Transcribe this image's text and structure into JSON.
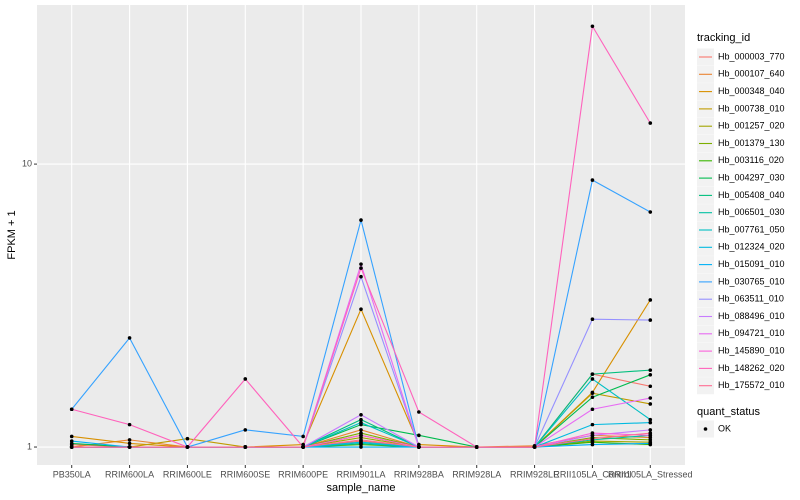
{
  "chart_data": {
    "type": "line",
    "log_y": true,
    "grid": true,
    "x_label": "sample_name",
    "y_label": "FPKM + 1",
    "categories": [
      "PB350LA",
      "RRIM600LA",
      "RRIM600LE",
      "RRIM600SE",
      "RRIM600PE",
      "RRIM901LA",
      "RRIM928BA",
      "RRIM928LA",
      "RRIM928LE",
      "RRII105LA_Control",
      "RRII105LA_Stressed"
    ],
    "ylim": [
      0.864,
      36.5
    ],
    "yticks": [
      1,
      10
    ],
    "legend_title": "tracking_id",
    "point_legend_title": "quant_status",
    "point_legend_label": "OK",
    "point_color": "#000000",
    "series": [
      {
        "name": "Hb_000003_770",
        "color": "#F8766D",
        "values": [
          1.02,
          1.0,
          1.0,
          1.0,
          1.0,
          1.05,
          1.0,
          1.0,
          1.0,
          1.81,
          1.64
        ]
      },
      {
        "name": "Hb_000107_640",
        "color": "#EA8331",
        "values": [
          1.0,
          1.06,
          1.0,
          1.0,
          1.0,
          1.15,
          1.0,
          1.0,
          1.01,
          1.1,
          1.08
        ]
      },
      {
        "name": "Hb_000348_040",
        "color": "#D89000",
        "values": [
          1.09,
          1.03,
          1.0,
          1.0,
          1.02,
          3.07,
          1.02,
          1.0,
          1.0,
          1.56,
          3.31
        ]
      },
      {
        "name": "Hb_000738_010",
        "color": "#C09B00",
        "values": [
          1.0,
          1.0,
          1.07,
          1.0,
          1.0,
          1.1,
          1.0,
          1.0,
          1.0,
          1.55,
          1.42
        ]
      },
      {
        "name": "Hb_001257_020",
        "color": "#A3A500",
        "values": [
          1.0,
          1.0,
          1.0,
          1.0,
          1.0,
          1.08,
          1.0,
          1.0,
          1.0,
          1.05,
          1.04
        ]
      },
      {
        "name": "Hb_001379_130",
        "color": "#7CAE00",
        "values": [
          1.0,
          1.0,
          1.0,
          1.0,
          1.0,
          1.12,
          1.0,
          1.0,
          1.0,
          1.08,
          1.06
        ]
      },
      {
        "name": "Hb_003116_020",
        "color": "#39B600",
        "values": [
          1.0,
          1.0,
          1.0,
          1.0,
          1.0,
          1.02,
          1.0,
          1.0,
          1.0,
          1.04,
          1.02
        ]
      },
      {
        "name": "Hb_004297_030",
        "color": "#00BB4E",
        "values": [
          1.03,
          1.0,
          1.0,
          1.0,
          1.0,
          1.2,
          1.1,
          1.0,
          1.0,
          1.5,
          1.8
        ]
      },
      {
        "name": "Hb_005408_040",
        "color": "#00BF7D",
        "values": [
          1.0,
          1.0,
          1.0,
          1.0,
          1.0,
          1.25,
          1.0,
          1.0,
          1.0,
          1.81,
          1.87
        ]
      },
      {
        "name": "Hb_006501_030",
        "color": "#00C1A3",
        "values": [
          1.0,
          1.0,
          1.0,
          1.0,
          1.0,
          1.03,
          1.0,
          1.0,
          1.0,
          1.06,
          1.1
        ]
      },
      {
        "name": "Hb_007761_050",
        "color": "#00BFC4",
        "values": [
          1.0,
          1.0,
          1.0,
          1.0,
          1.0,
          1.22,
          1.0,
          1.0,
          1.0,
          1.74,
          1.25
        ]
      },
      {
        "name": "Hb_012324_020",
        "color": "#00BAE0",
        "values": [
          1.0,
          1.0,
          1.0,
          1.0,
          1.0,
          1.04,
          1.0,
          1.0,
          1.0,
          1.2,
          1.22
        ]
      },
      {
        "name": "Hb_015091_010",
        "color": "#00B0F6",
        "values": [
          1.05,
          1.0,
          1.0,
          1.0,
          1.0,
          1.0,
          1.0,
          1.0,
          1.0,
          1.02,
          1.03
        ]
      },
      {
        "name": "Hb_030765_010",
        "color": "#35A2FF",
        "values": [
          1.36,
          2.43,
          1.0,
          1.15,
          1.09,
          6.34,
          1.0,
          1.0,
          1.0,
          8.78,
          6.77
        ]
      },
      {
        "name": "Hb_063511_010",
        "color": "#9590FF",
        "values": [
          1.0,
          1.0,
          1.0,
          1.0,
          1.0,
          4.0,
          1.0,
          1.0,
          1.0,
          2.83,
          2.81
        ]
      },
      {
        "name": "Hb_088496_010",
        "color": "#C77CFF",
        "values": [
          1.0,
          1.0,
          1.0,
          1.0,
          1.0,
          1.3,
          1.0,
          1.0,
          1.0,
          1.1,
          1.15
        ]
      },
      {
        "name": "Hb_094721_010",
        "color": "#E76BF3",
        "values": [
          1.0,
          1.0,
          1.0,
          1.0,
          1.0,
          4.43,
          1.0,
          1.0,
          1.0,
          1.36,
          1.49
        ]
      },
      {
        "name": "Hb_145890_010",
        "color": "#FA62DB",
        "values": [
          1.0,
          1.0,
          1.0,
          1.0,
          1.0,
          1.1,
          1.0,
          1.0,
          1.0,
          1.12,
          1.1
        ]
      },
      {
        "name": "Hb_148262_020",
        "color": "#FF62BC",
        "values": [
          1.36,
          1.2,
          1.0,
          1.74,
          1.0,
          4.29,
          1.33,
          1.0,
          1.0,
          30.7,
          13.96
        ]
      },
      {
        "name": "Hb_175572_010",
        "color": "#FF6C91",
        "values": [
          1.0,
          1.0,
          1.0,
          1.0,
          1.0,
          1.06,
          1.0,
          1.0,
          1.0,
          1.07,
          1.12
        ]
      }
    ]
  }
}
